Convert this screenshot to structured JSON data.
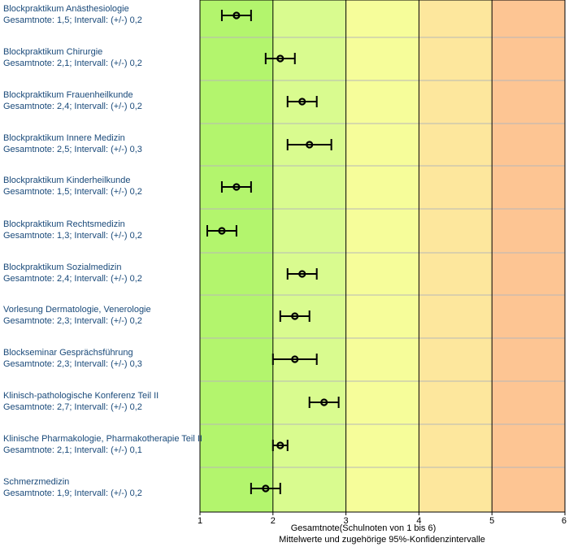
{
  "chart_data": {
    "type": "scatter",
    "orientation": "horizontal",
    "xlabel": "Gesamtnote(Schulnoten von 1 bis 6)",
    "subtitle": "Mittelwerte und zugehörige 95%-Konfidenzintervalle",
    "xlim": [
      1,
      6
    ],
    "xticks": [
      "1",
      "2",
      "3",
      "4",
      "5",
      "6"
    ],
    "grid": true,
    "bands": [
      {
        "from": 1,
        "to": 2,
        "color": "#b3f56d"
      },
      {
        "from": 2,
        "to": 3,
        "color": "#d9fb8f"
      },
      {
        "from": 3,
        "to": 4,
        "color": "#f6fd9a"
      },
      {
        "from": 4,
        "to": 5,
        "color": "#fde79d"
      },
      {
        "from": 5,
        "to": 6,
        "color": "#fdc593"
      }
    ],
    "items": [
      {
        "name": "Blockpraktikum Anästhesiologie",
        "detail": "Gesamtnote: 1,5;  Intervall: (+/-) 0,2",
        "mean": 1.5,
        "ci": 0.2
      },
      {
        "name": "Blockpraktikum Chirurgie",
        "detail": "Gesamtnote: 2,1;  Intervall: (+/-) 0,2",
        "mean": 2.1,
        "ci": 0.2
      },
      {
        "name": "Blockpraktikum Frauenheilkunde",
        "detail": "Gesamtnote: 2,4;  Intervall: (+/-) 0,2",
        "mean": 2.4,
        "ci": 0.2
      },
      {
        "name": "Blockpraktikum Innere Medizin",
        "detail": "Gesamtnote: 2,5;  Intervall: (+/-) 0,3",
        "mean": 2.5,
        "ci": 0.3
      },
      {
        "name": "Blockpraktikum Kinderheilkunde",
        "detail": "Gesamtnote: 1,5;  Intervall: (+/-) 0,2",
        "mean": 1.5,
        "ci": 0.2
      },
      {
        "name": "Blockpraktikum Rechtsmedizin",
        "detail": "Gesamtnote: 1,3;  Intervall: (+/-) 0,2",
        "mean": 1.3,
        "ci": 0.2
      },
      {
        "name": "Blockpraktikum Sozialmedizin",
        "detail": "Gesamtnote: 2,4;  Intervall: (+/-) 0,2",
        "mean": 2.4,
        "ci": 0.2
      },
      {
        "name": "Vorlesung Dermatologie, Venerologie",
        "detail": "Gesamtnote: 2,3;  Intervall: (+/-) 0,2",
        "mean": 2.3,
        "ci": 0.2
      },
      {
        "name": "Blockseminar Gesprächsführung",
        "detail": "Gesamtnote: 2,3;  Intervall: (+/-) 0,3",
        "mean": 2.3,
        "ci": 0.3
      },
      {
        "name": "Klinisch-pathologische Konferenz Teil II",
        "detail": "Gesamtnote: 2,7;  Intervall: (+/-) 0,2",
        "mean": 2.7,
        "ci": 0.2
      },
      {
        "name": "Klinische Pharmakologie, Pharmakotherapie Teil II",
        "detail": "Gesamtnote: 2,1;  Intervall: (+/-) 0,1",
        "mean": 2.1,
        "ci": 0.1
      },
      {
        "name": "Schmerzmedizin",
        "detail": "Gesamtnote: 1,9;  Intervall: (+/-) 0,2",
        "mean": 1.9,
        "ci": 0.2
      }
    ]
  }
}
